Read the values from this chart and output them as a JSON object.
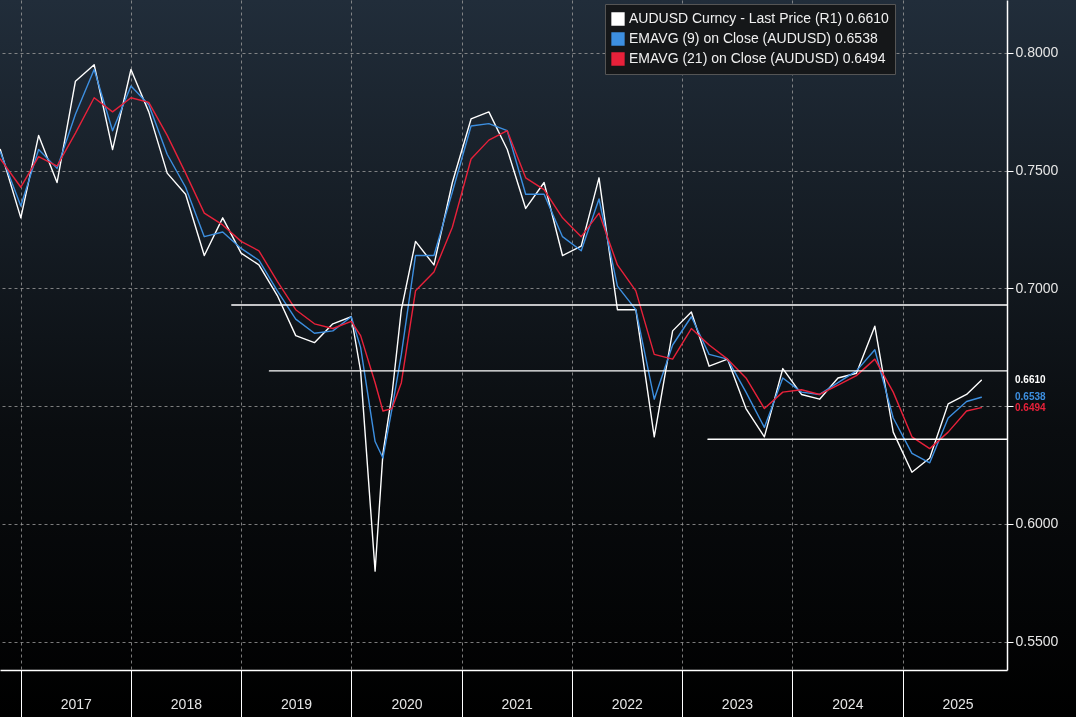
{
  "chart_data": {
    "type": "line",
    "x": [
      "2016-10-25",
      "2017-01-01",
      "2017-03-01",
      "2017-05-01",
      "2017-07-01",
      "2017-09-01",
      "2017-11-01",
      "2018-01-01",
      "2018-03-01",
      "2018-05-01",
      "2018-07-01",
      "2018-09-01",
      "2018-11-01",
      "2019-01-01",
      "2019-03-01",
      "2019-05-01",
      "2019-07-01",
      "2019-09-01",
      "2019-11-01",
      "2020-01-01",
      "2020-02-01",
      "2020-03-20",
      "2020-04-15",
      "2020-05-15",
      "2020-06-15",
      "2020-08-01",
      "2020-10-01",
      "2020-12-01",
      "2021-02-01",
      "2021-04-01",
      "2021-06-01",
      "2021-08-01",
      "2021-10-01",
      "2021-12-01",
      "2022-02-01",
      "2022-04-01",
      "2022-06-01",
      "2022-08-01",
      "2022-10-01",
      "2022-12-01",
      "2023-02-01",
      "2023-04-01",
      "2023-06-01",
      "2023-08-01",
      "2023-10-01",
      "2023-12-01",
      "2024-02-01",
      "2024-04-01",
      "2024-06-01",
      "2024-08-01",
      "2024-10-01",
      "2024-12-01",
      "2025-02-01",
      "2025-04-01",
      "2025-06-01",
      "2025-08-01",
      "2025-09-19"
    ],
    "series": [
      {
        "name": "AUDUSD Curncy - Last Price (R1) 0.6610",
        "color": "#ffffff",
        "values": [
          0.759,
          0.73,
          0.765,
          0.745,
          0.788,
          0.795,
          0.759,
          0.793,
          0.775,
          0.749,
          0.74,
          0.714,
          0.73,
          0.715,
          0.71,
          0.697,
          0.68,
          0.677,
          0.685,
          0.688,
          0.665,
          0.58,
          0.63,
          0.655,
          0.691,
          0.72,
          0.71,
          0.745,
          0.772,
          0.775,
          0.759,
          0.734,
          0.745,
          0.714,
          0.718,
          0.747,
          0.691,
          0.691,
          0.637,
          0.682,
          0.69,
          0.667,
          0.67,
          0.649,
          0.637,
          0.666,
          0.655,
          0.653,
          0.662,
          0.664,
          0.684,
          0.639,
          0.622,
          0.628,
          0.651,
          0.655,
          0.661
        ]
      },
      {
        "name": "EMAVG (9) on Close (AUDUSD) 0.6538",
        "color": "#3d8fe0",
        "values": [
          0.758,
          0.735,
          0.759,
          0.751,
          0.774,
          0.793,
          0.767,
          0.786,
          0.778,
          0.757,
          0.743,
          0.722,
          0.724,
          0.717,
          0.712,
          0.699,
          0.687,
          0.681,
          0.682,
          0.688,
          0.675,
          0.635,
          0.628,
          0.649,
          0.672,
          0.714,
          0.714,
          0.741,
          0.769,
          0.77,
          0.767,
          0.74,
          0.74,
          0.722,
          0.716,
          0.738,
          0.701,
          0.691,
          0.653,
          0.676,
          0.688,
          0.672,
          0.67,
          0.656,
          0.641,
          0.662,
          0.656,
          0.655,
          0.66,
          0.665,
          0.674,
          0.645,
          0.63,
          0.626,
          0.645,
          0.652,
          0.6538
        ]
      },
      {
        "name": "EMAVG (21) on Close (AUDUSD) 0.6494",
        "color": "#e8213a",
        "values": [
          0.755,
          0.743,
          0.756,
          0.752,
          0.766,
          0.781,
          0.775,
          0.781,
          0.779,
          0.765,
          0.749,
          0.732,
          0.727,
          0.72,
          0.716,
          0.703,
          0.691,
          0.685,
          0.683,
          0.686,
          0.68,
          0.66,
          0.648,
          0.649,
          0.66,
          0.699,
          0.707,
          0.726,
          0.755,
          0.763,
          0.767,
          0.747,
          0.742,
          0.73,
          0.722,
          0.732,
          0.71,
          0.699,
          0.672,
          0.67,
          0.683,
          0.676,
          0.67,
          0.662,
          0.649,
          0.656,
          0.657,
          0.655,
          0.659,
          0.663,
          0.67,
          0.656,
          0.637,
          0.632,
          0.639,
          0.648,
          0.6494
        ]
      },
      {
        "type": "line",
        "color": "#ffffff",
        "x": [
          "2018-12-01",
          "2025-12-13"
        ],
        "values": [
          0.693,
          0.693
        ]
      },
      {
        "type": "line",
        "color": "#ffffff",
        "x": [
          "2019-04-05",
          "2025-12-13"
        ],
        "values": [
          0.665,
          0.665
        ]
      },
      {
        "type": "line",
        "color": "#ffffff",
        "x": [
          "2023-03-28",
          "2025-12-13"
        ],
        "values": [
          0.636,
          0.636
        ]
      }
    ],
    "xlim": [
      "2016-10-24",
      "2025-12-13"
    ],
    "xticks": [
      {
        "value": "2017-01-01",
        "label": null
      },
      {
        "value": "2017-07-02",
        "label": "2017"
      },
      {
        "value": "2018-01-01",
        "label": null
      },
      {
        "value": "2018-07-02",
        "label": "2018"
      },
      {
        "value": "2019-01-01",
        "label": null
      },
      {
        "value": "2019-07-02",
        "label": "2019"
      },
      {
        "value": "2020-01-01",
        "label": null
      },
      {
        "value": "2020-07-02",
        "label": "2020"
      },
      {
        "value": "2021-01-01",
        "label": null
      },
      {
        "value": "2021-07-02",
        "label": "2021"
      },
      {
        "value": "2022-01-01",
        "label": null
      },
      {
        "value": "2022-07-02",
        "label": "2022"
      },
      {
        "value": "2023-01-01",
        "label": null
      },
      {
        "value": "2023-07-02",
        "label": "2023"
      },
      {
        "value": "2024-01-01",
        "label": null
      },
      {
        "value": "2024-07-02",
        "label": "2024"
      },
      {
        "value": "2025-01-01",
        "label": null
      },
      {
        "value": "2025-07-02",
        "label": "2025"
      }
    ],
    "ylim": [
      0.538,
      0.8225
    ],
    "yticks": [
      {
        "value": 0.55,
        "label": "0.5500"
      },
      {
        "value": 0.6,
        "label": "0.6000"
      },
      {
        "value": 0.65,
        "label": null
      },
      {
        "value": 0.7,
        "label": "0.7000"
      },
      {
        "value": 0.75,
        "label": "0.7500"
      },
      {
        "value": 0.8,
        "label": "0.8000"
      }
    ],
    "annotations": [
      "0.6610",
      "0.6538",
      "0.6494"
    ],
    "grid": true,
    "legend": "top right"
  }
}
